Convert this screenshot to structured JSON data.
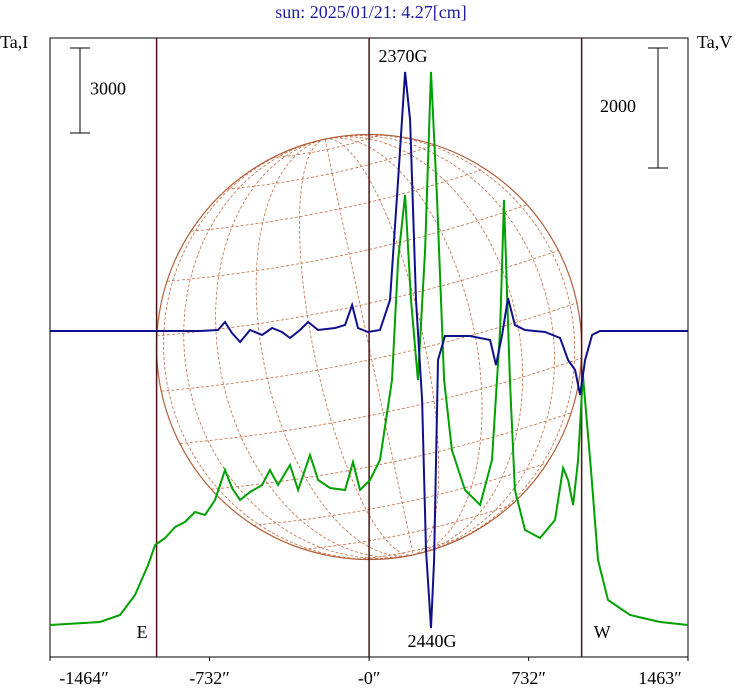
{
  "chart_data": {
    "type": "line",
    "title": "sun: 2025/01/21: 4.27[cm]",
    "ylabel": "Ta,I",
    "y2label": "Ta,V",
    "xlim": [
      -1464,
      1463
    ],
    "xticks": [
      {
        "value": -1464,
        "label": "-1464″"
      },
      {
        "value": -732,
        "label": "-732″"
      },
      {
        "value": 0,
        "label": "-0″"
      },
      {
        "value": 732,
        "label": "732″"
      },
      {
        "value": 1463,
        "label": "1463″"
      }
    ],
    "ylim": [
      -1129,
      20718
    ],
    "y2lim": [
      -5433,
      4883
    ],
    "y_scale_bar": 3000,
    "y2_scale_bar": 2000,
    "disk_radius": 975,
    "limb_labels": [
      "E",
      "W"
    ],
    "annotations": [
      "2370G",
      "2440G"
    ],
    "series": [
      {
        "color": "#00a000",
        "axis": "y",
        "x": [
          -1464,
          -1235,
          -1143,
          -1074,
          -1014,
          -982,
          -936,
          -890,
          -845,
          -799,
          -753,
          -707,
          -661,
          -629,
          -592,
          -546,
          -491,
          -455,
          -418,
          -363,
          -326,
          -271,
          -234,
          -179,
          -110,
          -74,
          -42,
          4,
          50,
          105,
          133,
          165,
          192,
          224,
          257,
          284,
          312,
          344,
          380,
          440,
          509,
          564,
          601,
          619,
          646,
          669,
          715,
          784,
          853,
          890,
          913,
          936,
          959,
          981,
          1018,
          1050,
          1096,
          1197,
          1335,
          1463
        ],
        "values": [
          0,
          106,
          353,
          1059,
          2118,
          2824,
          3071,
          3459,
          3636,
          3989,
          3883,
          4413,
          5472,
          4836,
          4413,
          4695,
          4942,
          5472,
          4942,
          5648,
          4766,
          6001,
          5119,
          4836,
          4766,
          5754,
          4766,
          5119,
          5825,
          8649,
          12885,
          15179,
          11473,
          8649,
          13238,
          19521,
          15003,
          8649,
          6178,
          4766,
          4236,
          5825,
          10414,
          15003,
          8649,
          4766,
          3354,
          3071,
          3707,
          5542,
          5119,
          4236,
          5825,
          8825,
          5472,
          2295,
          883,
          353,
          106,
          0
        ]
      },
      {
        "color": "#10108c",
        "axis": "y2",
        "x": [
          -1464,
          -1005,
          -776,
          -693,
          -661,
          -629,
          -592,
          -546,
          -491,
          -445,
          -400,
          -363,
          -317,
          -280,
          -234,
          -156,
          -110,
          -78,
          -51,
          -5,
          50,
          96,
          133,
          165,
          188,
          215,
          243,
          261,
          284,
          298,
          316,
          348,
          463,
          555,
          582,
          610,
          637,
          669,
          715,
          807,
          876,
          913,
          945,
          968,
          991,
          1023,
          1059,
          1463
        ],
        "values": [
          0,
          0,
          0,
          17,
          150,
          -33,
          -183,
          17,
          -67,
          50,
          -17,
          -117,
          17,
          150,
          17,
          50,
          100,
          433,
          50,
          -17,
          17,
          517,
          2517,
          4317,
          3517,
          517,
          -1150,
          -3650,
          -4950,
          -3817,
          -483,
          -83,
          -83,
          -150,
          -567,
          -67,
          550,
          100,
          17,
          -17,
          -117,
          -483,
          -650,
          -1067,
          -483,
          -67,
          0,
          0
        ]
      }
    ]
  }
}
